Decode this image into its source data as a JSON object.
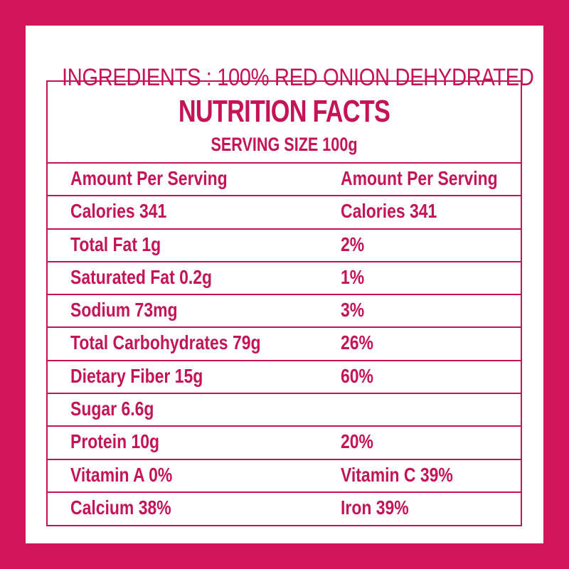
{
  "ingredients": "INGREDIENTS : 100% RED ONION DEHYDRATED",
  "nutrition": {
    "title": "NUTRITION FACTS",
    "serving_size": "SERVING SIZE 100g",
    "rows": [
      {
        "left": "Amount Per Serving",
        "right": "Amount Per Serving"
      },
      {
        "left": "Calories 341",
        "right": "Calories 341"
      },
      {
        "left": "Total Fat 1g",
        "right": "2%"
      },
      {
        "left": "Saturated Fat 0.2g",
        "right": "1%"
      },
      {
        "left": "Sodium 73mg",
        "right": "3%"
      },
      {
        "left": "Total Carbohydrates 79g",
        "right": "26%"
      },
      {
        "left": "Dietary Fiber 15g",
        "right": "60%"
      },
      {
        "left": "Sugar 6.6g",
        "right": ""
      },
      {
        "left": "Protein 10g",
        "right": "20%"
      },
      {
        "left": "Vitamin A 0%",
        "right": "Vitamin C 39%"
      },
      {
        "left": "Calcium 38%",
        "right": "Iron 39%"
      }
    ]
  },
  "colors": {
    "accent": "#d3165a",
    "text": "#c41457",
    "background": "#ffffff"
  }
}
